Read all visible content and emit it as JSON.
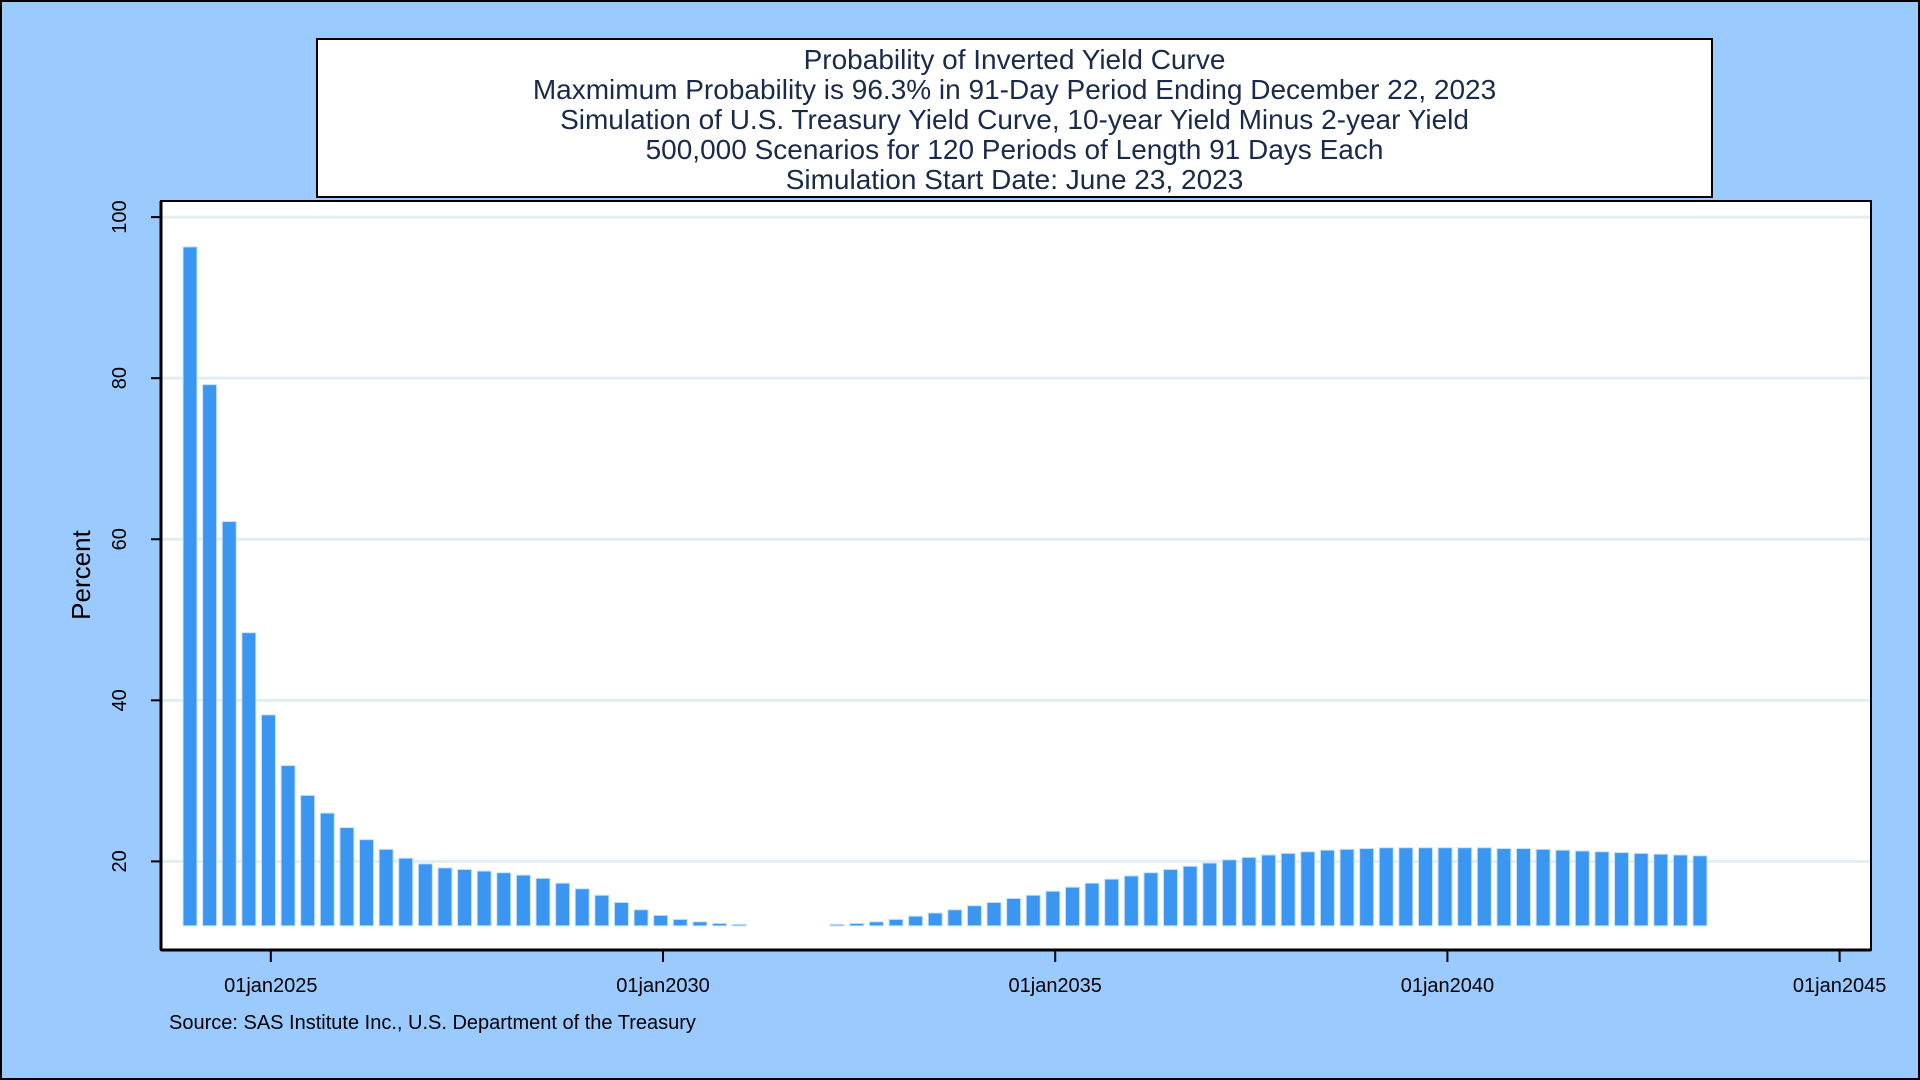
{
  "chart_data": {
    "type": "bar",
    "title_lines": [
      "Probability of Inverted Yield Curve",
      "Maxmimum Probability is 96.3% in 91-Day Period Ending December 22, 2023",
      "Simulation of U.S. Treasury Yield Curve, 10-year Yield Minus 2-year Yield",
      "500,000 Scenarios for 120 Periods of Length 91 Days Each",
      "Simulation Start Date: June 23, 2023"
    ],
    "ylabel": "Percent",
    "xlabel": "",
    "source": "Source: SAS Institute Inc., U.S. Department of the Treasury",
    "ylim": [
      9,
      102
    ],
    "xlim": [
      2023.6,
      2045.4
    ],
    "y_ticks": [
      20,
      40,
      60,
      80,
      100
    ],
    "x_ticks": [
      {
        "value": 2025,
        "label": "01jan2025"
      },
      {
        "value": 2030,
        "label": "01jan2030"
      },
      {
        "value": 2035,
        "label": "01jan2035"
      },
      {
        "value": 2040,
        "label": "01jan2040"
      },
      {
        "value": 2045,
        "label": "01jan2045"
      }
    ],
    "bar_baseline": 12,
    "grid": true,
    "bar_color": "#3a96f0",
    "x": [
      2023.97,
      2024.22,
      2024.47,
      2024.72,
      2024.97,
      2025.22,
      2025.47,
      2025.72,
      2025.97,
      2026.22,
      2026.47,
      2026.72,
      2026.97,
      2027.22,
      2027.47,
      2027.72,
      2027.97,
      2028.22,
      2028.47,
      2028.72,
      2028.97,
      2029.22,
      2029.47,
      2029.72,
      2029.97,
      2030.22,
      2030.47,
      2030.72,
      2030.97,
      2032.22,
      2032.47,
      2032.72,
      2032.97,
      2033.22,
      2033.47,
      2033.72,
      2033.97,
      2034.22,
      2034.47,
      2034.72,
      2034.97,
      2035.22,
      2035.47,
      2035.72,
      2035.97,
      2036.22,
      2036.47,
      2036.72,
      2036.97,
      2037.22,
      2037.47,
      2037.72,
      2037.97,
      2038.22,
      2038.47,
      2038.72,
      2038.97,
      2039.22,
      2039.47,
      2039.72,
      2039.97,
      2040.22,
      2040.47,
      2040.72,
      2040.97,
      2041.22,
      2041.47,
      2041.72,
      2041.97,
      2042.22,
      2042.47,
      2042.72,
      2042.97,
      2043.22
    ],
    "values": [
      96.3,
      79.2,
      62.2,
      48.4,
      38.2,
      31.9,
      28.2,
      26.0,
      24.2,
      22.7,
      21.5,
      20.4,
      19.7,
      19.2,
      19.0,
      18.8,
      18.6,
      18.3,
      17.9,
      17.3,
      16.6,
      15.8,
      14.9,
      14.0,
      13.3,
      12.8,
      12.5,
      12.3,
      12.1,
      12.1,
      12.3,
      12.5,
      12.8,
      13.2,
      13.6,
      14.0,
      14.5,
      14.9,
      15.4,
      15.8,
      16.3,
      16.8,
      17.3,
      17.8,
      18.2,
      18.6,
      19.0,
      19.4,
      19.8,
      20.2,
      20.5,
      20.8,
      21.0,
      21.2,
      21.4,
      21.5,
      21.6,
      21.7,
      21.7,
      21.7,
      21.7,
      21.7,
      21.7,
      21.6,
      21.6,
      21.5,
      21.4,
      21.3,
      21.2,
      21.1,
      21.0,
      20.9,
      20.8,
      20.7
    ]
  }
}
